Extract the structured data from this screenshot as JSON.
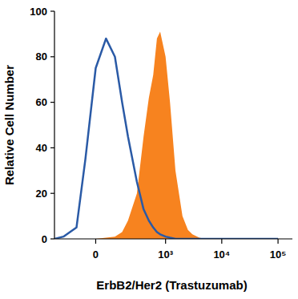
{
  "chart_data": {
    "type": "histogram",
    "x_label": "ErbB2/Her2 (Trastuzumab)",
    "y_label": "Relative Cell Number",
    "x": [
      -300,
      -200,
      -100,
      -50,
      0,
      50,
      100,
      150,
      200,
      300,
      400,
      500,
      600,
      700,
      800,
      1000,
      1200,
      1500,
      2000,
      2500,
      3000,
      4000,
      5000,
      10000,
      100000
    ],
    "series": [
      {
        "color": "#2a5aa6",
        "type": "line",
        "values": [
          0,
          1,
          5,
          35,
          75,
          88,
          80,
          60,
          45,
          25,
          13,
          8,
          5,
          3,
          2,
          1,
          0.5,
          0,
          0,
          0,
          0,
          0,
          0,
          0,
          0
        ]
      },
      {
        "color": "#f7831f",
        "type": "area",
        "values": [
          0,
          0,
          0,
          0,
          0,
          0.5,
          1,
          3,
          8,
          20,
          45,
          62,
          72,
          88,
          91,
          80,
          60,
          30,
          10,
          4,
          2,
          0.5,
          0,
          0,
          0
        ]
      }
    ],
    "xlim": [
      -300,
      180000
    ],
    "xticks": [
      0,
      {
        "value": 1000,
        "label": "10³"
      },
      {
        "value": 10000,
        "label": "10⁴"
      },
      {
        "value": 100000,
        "label": "10⁵"
      }
    ],
    "ylim": [
      0,
      100
    ],
    "yticks": [
      0,
      20,
      40,
      60,
      80,
      100
    ],
    "log": "x",
    "grid": false
  }
}
